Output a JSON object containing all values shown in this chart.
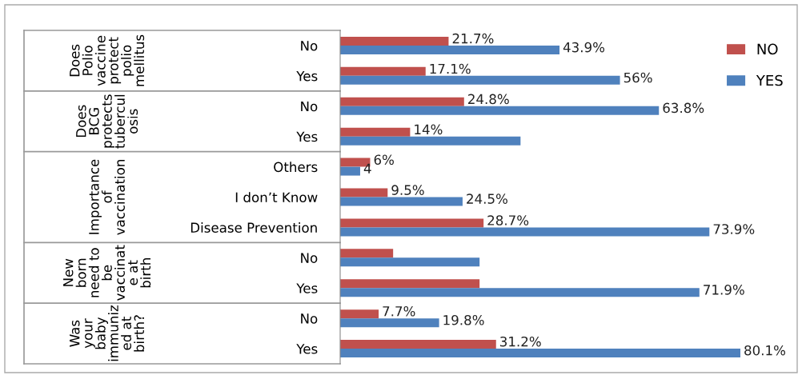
{
  "chart_data": {
    "type": "bar",
    "orientation": "horizontal",
    "categories": [
      "No",
      "Yes",
      "No",
      "Yes",
      "Others",
      "I don’t Know",
      "Disease Prevention",
      "No",
      "Yes",
      "No",
      "Yes"
    ],
    "series": [
      {
        "name": "NO",
        "color": "#c0504d",
        "values": [
          21.7,
          17.1,
          24.8,
          14,
          6,
          9.5,
          28.7,
          10.6,
          27.9,
          7.7,
          31.2
        ],
        "value_labels": [
          "21.7%",
          "17.1%",
          "24.8%",
          "14%",
          "6%",
          "9.5%",
          "28.7%",
          null,
          null,
          "7.7%",
          "31.2%"
        ]
      },
      {
        "name": "YES",
        "color": "#4f81bd",
        "values": [
          43.9,
          56,
          63.8,
          36.1,
          4,
          24.5,
          73.9,
          27.9,
          71.9,
          19.8,
          80.1
        ],
        "value_labels": [
          "43.9%",
          "56%",
          "63.8%",
          null,
          "4",
          "24.5%",
          "73.9%",
          null,
          "71.9%",
          "19.8%",
          "80.1%"
        ]
      }
    ],
    "annotations": [
      "Does\nPolio\nvaccine\nprotect\npolio\nmellitus",
      "Does\nBCG\nprotects\ntubercul\nosis",
      "Importance\nof\nvaccination",
      "New\nborn\nneed to\nbe\nvaccinat\ne at\nbirth",
      "Was\nyour\nbaby\nimmuniz\ned at\nbirth?"
    ],
    "legend": "top right",
    "grid": false
  }
}
